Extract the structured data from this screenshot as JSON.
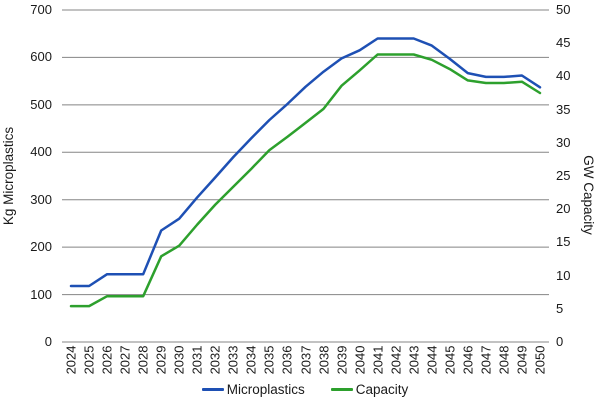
{
  "chart_data": {
    "type": "line",
    "title": "",
    "categories": [
      "2024",
      "2025",
      "2026",
      "2027",
      "2028",
      "2029",
      "2030",
      "2031",
      "2032",
      "2033",
      "2034",
      "2035",
      "2036",
      "2037",
      "2038",
      "2039",
      "2040",
      "2041",
      "2042",
      "2043",
      "2044",
      "2045",
      "2046",
      "2047",
      "2048",
      "2049",
      "2050"
    ],
    "series": [
      {
        "name": "Microplastics",
        "axis": "left",
        "color": "#1e50b4",
        "values": [
          118,
          118,
          143,
          143,
          143,
          235,
          260,
          305,
          347,
          390,
          430,
          468,
          502,
          538,
          570,
          598,
          615,
          640,
          640,
          640,
          625,
          597,
          567,
          559,
          559,
          562,
          537
        ]
      },
      {
        "name": "Capacity",
        "axis": "right",
        "color": "#2da02d",
        "values": [
          5.4,
          5.4,
          6.9,
          6.9,
          6.9,
          12.9,
          14.5,
          17.7,
          20.7,
          23.4,
          26.1,
          28.9,
          30.9,
          33.0,
          35.1,
          38.6,
          40.9,
          43.3,
          43.3,
          43.3,
          42.5,
          41.1,
          39.4,
          39.0,
          39.0,
          39.2,
          37.5
        ]
      }
    ],
    "left_axis": {
      "label": "Kg Microplastics",
      "min": 0,
      "max": 700,
      "step": 100,
      "ticks": [
        "0",
        "100",
        "200",
        "300",
        "400",
        "500",
        "600",
        "700"
      ]
    },
    "right_axis": {
      "label": "GW Capacity",
      "min": 0,
      "max": 50,
      "step": 5,
      "ticks": [
        "0",
        "5",
        "10",
        "15",
        "20",
        "25",
        "30",
        "35",
        "40",
        "45",
        "50"
      ]
    },
    "legend_position": "bottom",
    "grid": "horizontal"
  },
  "colors": {
    "background": "#ffffff",
    "grid": "#858585",
    "text": "#1a1a1a",
    "microplastics_line": "#1e50b4",
    "capacity_line": "#2da02d"
  }
}
